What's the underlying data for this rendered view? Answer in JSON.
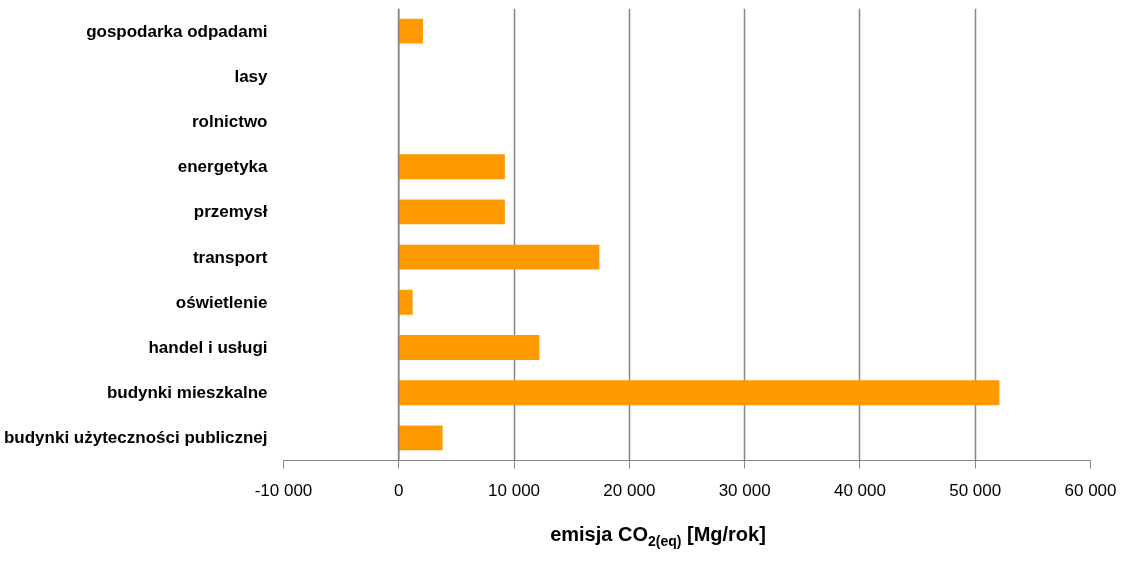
{
  "chart_data": {
    "type": "bar",
    "orientation": "horizontal",
    "xlabel": "emisja CO$_{2(eq)}$ [Mg/rok]",
    "categories": [
      "gospodarka odpadami",
      "lasy",
      "rolnictwo",
      "energetyka",
      "przemysł",
      "transport",
      "oświetlenie",
      "handel i usługi",
      "budynki mieszkalne",
      "budynki użyteczności publicznej"
    ],
    "values": [
      2100,
      0,
      0,
      9200,
      9200,
      17400,
      1200,
      12200,
      52100,
      3800
    ],
    "color": "#ff9900",
    "xlim": [
      -10000,
      60000
    ],
    "xticks": [
      {
        "value": -10000,
        "label": "-10 000"
      },
      0,
      {
        "value": 10000,
        "label": "10 000"
      },
      {
        "value": 20000,
        "label": "20 000"
      },
      {
        "value": 30000,
        "label": "30 000"
      },
      {
        "value": 40000,
        "label": "40 000"
      },
      {
        "value": 50000,
        "label": "50 000"
      },
      {
        "value": 60000,
        "label": "60 000"
      }
    ],
    "grid": "x"
  }
}
